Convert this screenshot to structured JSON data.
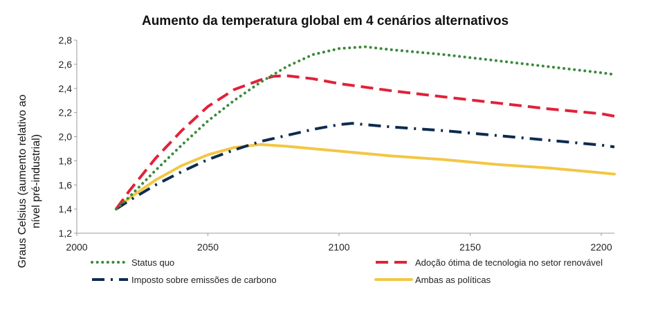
{
  "chart_data": {
    "type": "line",
    "title": "Aumento da temperatura global em 4 cenários alternativos",
    "xlabel": "",
    "ylabel_lines": [
      "Graus Celsius (aumento relativo ao",
      "nível pré-industrial)"
    ],
    "xlim": [
      2000,
      2205
    ],
    "ylim": [
      1.2,
      2.8
    ],
    "x_ticks": [
      2000,
      2050,
      2100,
      2150,
      2200
    ],
    "x_tick_labels": [
      "2000",
      "2050",
      "2100",
      "2150",
      "2200"
    ],
    "y_ticks": [
      1.2,
      1.4,
      1.6,
      1.8,
      2.0,
      2.2,
      2.4,
      2.6,
      2.8
    ],
    "y_tick_labels": [
      "1,2",
      "1,4",
      "1,6",
      "1,8",
      "2,0",
      "2,2",
      "2,4",
      "2,6",
      "2,8"
    ],
    "grid": false,
    "legend_position": "bottom",
    "series": [
      {
        "name": "Status quo",
        "style": "dotted",
        "color": "#3a8a3a",
        "x": [
          2015,
          2020,
          2030,
          2040,
          2050,
          2060,
          2070,
          2080,
          2090,
          2100,
          2110,
          2120,
          2140,
          2160,
          2180,
          2200,
          2205
        ],
        "y": [
          1.4,
          1.5,
          1.72,
          1.93,
          2.13,
          2.3,
          2.45,
          2.58,
          2.68,
          2.73,
          2.745,
          2.72,
          2.68,
          2.63,
          2.58,
          2.53,
          2.515
        ]
      },
      {
        "name": "Adoção ótima de tecnologia no setor renovável",
        "style": "dashed",
        "color": "#e0223a",
        "x": [
          2015,
          2020,
          2030,
          2040,
          2050,
          2060,
          2070,
          2075,
          2080,
          2090,
          2100,
          2120,
          2140,
          2160,
          2180,
          2200,
          2205
        ],
        "y": [
          1.4,
          1.55,
          1.82,
          2.05,
          2.25,
          2.39,
          2.47,
          2.5,
          2.505,
          2.48,
          2.44,
          2.38,
          2.33,
          2.28,
          2.23,
          2.19,
          2.17
        ]
      },
      {
        "name": "Imposto sobre emissões de carbono",
        "style": "dashdot",
        "color": "#0d2b50",
        "x": [
          2015,
          2020,
          2030,
          2040,
          2050,
          2060,
          2070,
          2080,
          2090,
          2100,
          2105,
          2110,
          2120,
          2140,
          2160,
          2180,
          2200,
          2205
        ],
        "y": [
          1.4,
          1.47,
          1.6,
          1.71,
          1.81,
          1.89,
          1.96,
          2.01,
          2.06,
          2.1,
          2.11,
          2.1,
          2.08,
          2.05,
          2.01,
          1.97,
          1.93,
          1.915
        ]
      },
      {
        "name": "Ambas as políticas",
        "style": "solid",
        "color": "#f2c744",
        "x": [
          2015,
          2020,
          2030,
          2040,
          2050,
          2060,
          2070,
          2080,
          2090,
          2100,
          2120,
          2140,
          2160,
          2180,
          2200,
          2205
        ],
        "y": [
          1.4,
          1.49,
          1.64,
          1.76,
          1.85,
          1.91,
          1.935,
          1.92,
          1.9,
          1.88,
          1.84,
          1.81,
          1.77,
          1.74,
          1.7,
          1.69
        ]
      }
    ]
  }
}
